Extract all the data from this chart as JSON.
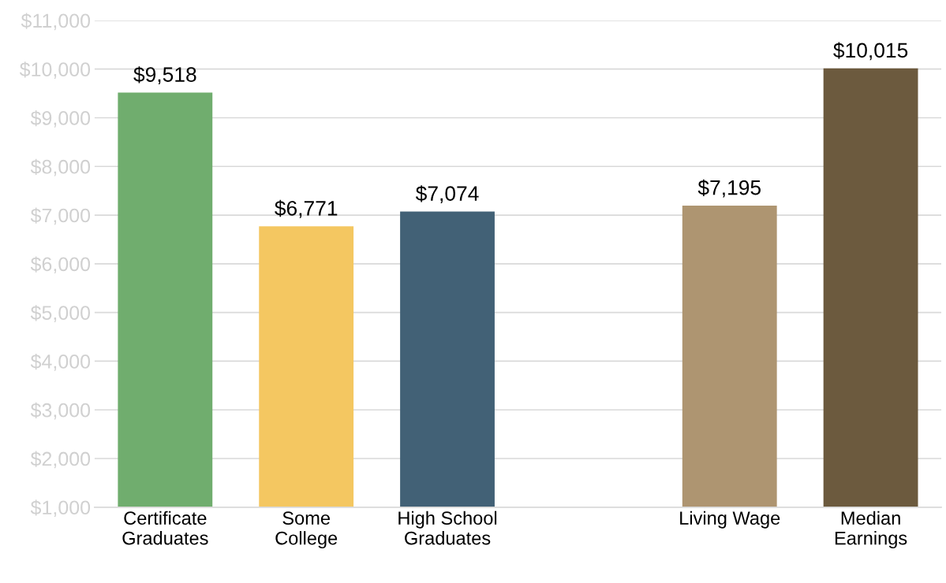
{
  "chart_data": {
    "type": "bar",
    "categories": [
      "Certificate\nGraduates",
      "Some\nCollege",
      "High School\nGraduates",
      null,
      "Living Wage",
      "Median\nEarnings"
    ],
    "values": [
      9518,
      6771,
      7074,
      null,
      7195,
      10015
    ],
    "colors": [
      "#70ad6e",
      "#f4c761",
      "#426176",
      null,
      "#ae9571",
      "#6c5a3e"
    ],
    "value_labels": [
      "$9,518",
      "$6,771",
      "$7,074",
      null,
      "$7,195",
      "$10,015"
    ],
    "ylim": [
      1000,
      11000
    ],
    "yticks": [
      {
        "value": 1000,
        "label": "$1,000"
      },
      {
        "value": 2000,
        "label": "$2,000"
      },
      {
        "value": 3000,
        "label": "$3,000"
      },
      {
        "value": 4000,
        "label": "$4,000"
      },
      {
        "value": 5000,
        "label": "$5,000"
      },
      {
        "value": 6000,
        "label": "$6,000"
      },
      {
        "value": 7000,
        "label": "$7,000"
      },
      {
        "value": 8000,
        "label": "$8,000"
      },
      {
        "value": 9000,
        "label": "$9,000"
      },
      {
        "value": 10000,
        "label": "$10,000"
      },
      {
        "value": 11000,
        "label": "$11,000"
      }
    ],
    "grid": "y"
  }
}
